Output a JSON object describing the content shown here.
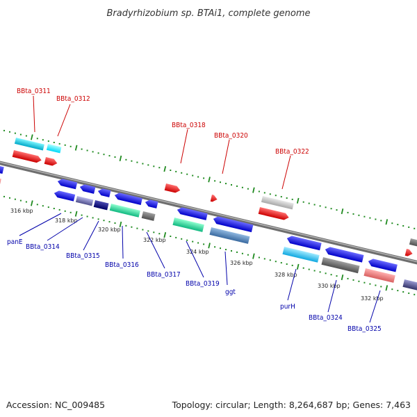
{
  "title": "Bradyrhizobium sp. BTAi1, complete genome",
  "footer": {
    "accession": "Accession: NC_009485",
    "topology": "Topology: circular; Length: 8,264,687 bp; Genes: 7,463"
  },
  "colors": {
    "backbone": "#8a8a8a",
    "ticks": "#1f8a1f",
    "label_top": "#cc0000",
    "label_bottom": "#0000aa"
  },
  "scale_labels": [
    "316 kbp",
    "318 kbp",
    "320 kbp",
    "322 kbp",
    "324 kbp",
    "326 kbp",
    "328 kbp",
    "330 kbp",
    "332 kbp"
  ],
  "top_labels": [
    "BBta_0311",
    "BBta_0312",
    "BBta_0318",
    "BBta_0320",
    "BBta_0322"
  ],
  "bottom_labels": [
    "panE",
    "BBta_0314",
    "BBta_0315",
    "BBta_0316",
    "BBta_0317",
    "BBta_0319",
    "ggt",
    "purH",
    "BBta_0324",
    "BBta_0325"
  ]
}
